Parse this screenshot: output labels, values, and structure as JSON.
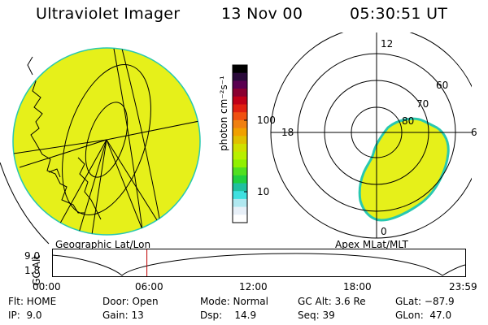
{
  "header": {
    "instrument": "Ultraviolet Imager",
    "date": "13 Nov 00",
    "time": "05:30:51 UT"
  },
  "left_panel": {
    "caption": "Geographic Lat/Lon"
  },
  "right_panel": {
    "caption": "Apex MLat/MLT",
    "mlt_labels": [
      "12",
      "18",
      "6",
      "0"
    ],
    "lat_labels": [
      "60",
      "70",
      "80"
    ]
  },
  "colorbar": {
    "unit_label": "photon cm⁻²s⁻¹",
    "ticks": [
      "100",
      "10"
    ],
    "colors": [
      "#000000",
      "#2a0a3a",
      "#5a0050",
      "#8a0030",
      "#c00018",
      "#e02010",
      "#f05010",
      "#f08010",
      "#f0a000",
      "#e0c000",
      "#d0e000",
      "#b8f000",
      "#90f000",
      "#50e020",
      "#20d040",
      "#20c0a0",
      "#40e0e0",
      "#b0e8f0",
      "#e8f0f8",
      "#ffffff"
    ]
  },
  "altitude_plot": {
    "ylabel": "GC Alt",
    "y_ticks": [
      "9.0",
      "1.8"
    ],
    "x_ticks": [
      "00:00",
      "06:00",
      "12:00",
      "18:00",
      "23:59"
    ],
    "current_time_hours": 5.51
  },
  "info": {
    "row1": {
      "flt": "Flt: HOME",
      "door": "Door: Open",
      "mode": "Mode: Normal",
      "gc_alt": "GC Alt: 3.6 Re",
      "glat": "GLat: −87.9"
    },
    "row2": {
      "ip": "IP:  9.0",
      "gain": "Gain: 13",
      "dsp": "Dsp:    14.9",
      "seq": "Seq: 39",
      "glon": "GLon:  47.0"
    }
  },
  "colors": {
    "emission_fill": "#e6f01a",
    "emission_edge": "#28c8b0",
    "timeline_marker": "#c00000"
  }
}
